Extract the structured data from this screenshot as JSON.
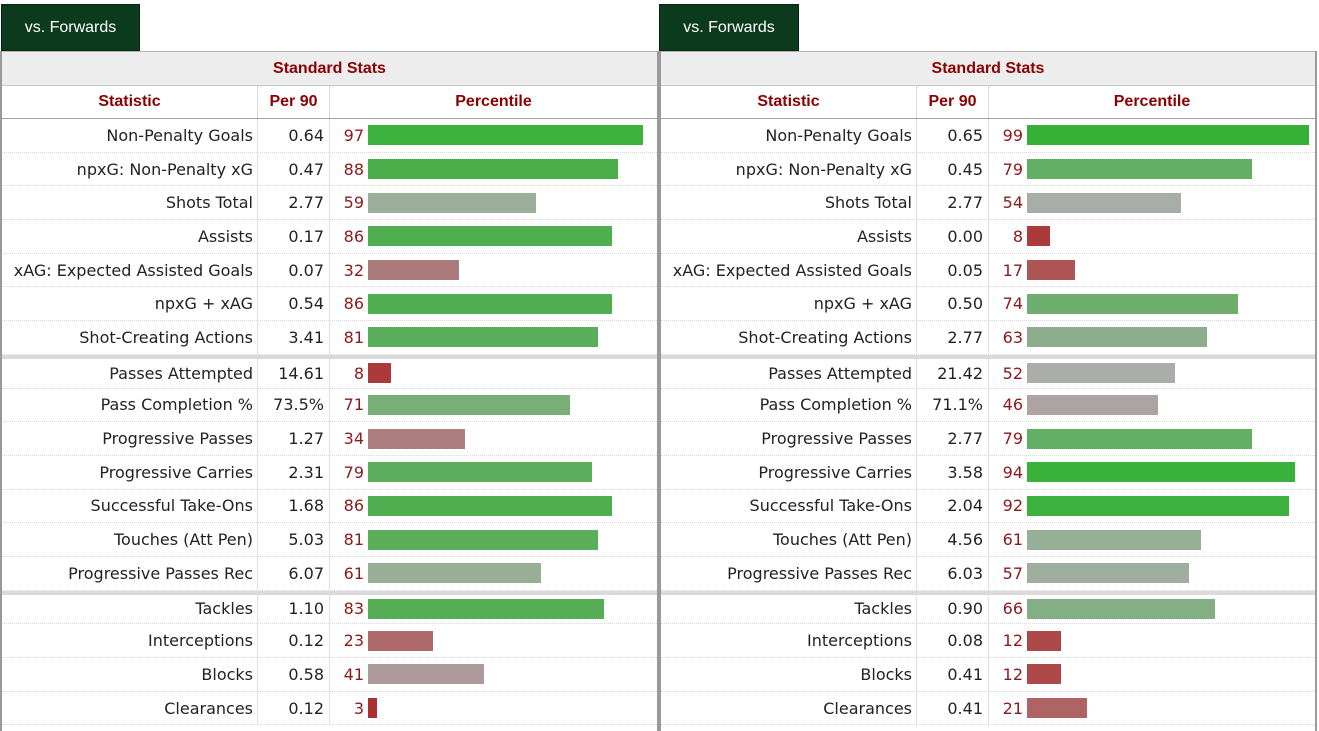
{
  "panels": [
    {
      "tab_label": "vs. Forwards",
      "group_title": "Standard Stats",
      "columns": {
        "statistic": "Statistic",
        "per90": "Per 90",
        "percentile": "Percentile"
      },
      "rows": [
        {
          "stat": "Non-Penalty Goals",
          "per90": "0.64",
          "pct": "97",
          "pct_value": 97,
          "color": "#3cb13c"
        },
        {
          "stat": "npxG: Non-Penalty xG",
          "per90": "0.47",
          "pct": "88",
          "pct_value": 88,
          "color": "#4aae4a"
        },
        {
          "stat": "Shots Total",
          "per90": "2.77",
          "pct": "59",
          "pct_value": 59,
          "color": "#9aae9a"
        },
        {
          "stat": "Assists",
          "per90": "0.17",
          "pct": "86",
          "pct_value": 86,
          "color": "#4fae4f"
        },
        {
          "stat": "xAG: Expected Assisted Goals",
          "per90": "0.07",
          "pct": "32",
          "pct_value": 32,
          "color": "#ab7b7b"
        },
        {
          "stat": "npxG + xAG",
          "per90": "0.54",
          "pct": "86",
          "pct_value": 86,
          "color": "#4fae4f"
        },
        {
          "stat": "Shot-Creating Actions",
          "per90": "3.41",
          "pct": "81",
          "pct_value": 81,
          "color": "#5aae5a",
          "group_end": true
        },
        {
          "stat": "Passes Attempted",
          "per90": "14.61",
          "pct": "8",
          "pct_value": 8,
          "color": "#ac3a3a",
          "sep": true
        },
        {
          "stat": "Pass Completion %",
          "per90": "73.5%",
          "pct": "71",
          "pct_value": 71,
          "color": "#79ae79"
        },
        {
          "stat": "Progressive Passes",
          "per90": "1.27",
          "pct": "34",
          "pct_value": 34,
          "color": "#ad8080"
        },
        {
          "stat": "Progressive Carries",
          "per90": "2.31",
          "pct": "79",
          "pct_value": 79,
          "color": "#5cae5c"
        },
        {
          "stat": "Successful Take-Ons",
          "per90": "1.68",
          "pct": "86",
          "pct_value": 86,
          "color": "#4fae4f"
        },
        {
          "stat": "Touches (Att Pen)",
          "per90": "5.03",
          "pct": "81",
          "pct_value": 81,
          "color": "#5aae5a"
        },
        {
          "stat": "Progressive Passes Rec",
          "per90": "6.07",
          "pct": "61",
          "pct_value": 61,
          "color": "#97ae97",
          "group_end": true
        },
        {
          "stat": "Tackles",
          "per90": "1.10",
          "pct": "83",
          "pct_value": 83,
          "color": "#55ae55",
          "sep": true
        },
        {
          "stat": "Interceptions",
          "per90": "0.12",
          "pct": "23",
          "pct_value": 23,
          "color": "#ae6a6a"
        },
        {
          "stat": "Blocks",
          "per90": "0.58",
          "pct": "41",
          "pct_value": 41,
          "color": "#ad9a9a"
        },
        {
          "stat": "Clearances",
          "per90": "0.12",
          "pct": "3",
          "pct_value": 3,
          "color": "#ad2f2f"
        }
      ]
    },
    {
      "tab_label": "vs. Forwards",
      "group_title": "Standard Stats",
      "columns": {
        "statistic": "Statistic",
        "per90": "Per 90",
        "percentile": "Percentile"
      },
      "rows": [
        {
          "stat": "Non-Penalty Goals",
          "per90": "0.65",
          "pct": "99",
          "pct_value": 99,
          "color": "#36b136"
        },
        {
          "stat": "npxG: Non-Penalty xG",
          "per90": "0.45",
          "pct": "79",
          "pct_value": 79,
          "color": "#62ae62"
        },
        {
          "stat": "Shots Total",
          "per90": "2.77",
          "pct": "54",
          "pct_value": 54,
          "color": "#a7ada7"
        },
        {
          "stat": "Assists",
          "per90": "0.00",
          "pct": "8",
          "pct_value": 8,
          "color": "#ac3a3a"
        },
        {
          "stat": "xAG: Expected Assisted Goals",
          "per90": "0.05",
          "pct": "17",
          "pct_value": 17,
          "color": "#ad5454"
        },
        {
          "stat": "npxG + xAG",
          "per90": "0.50",
          "pct": "74",
          "pct_value": 74,
          "color": "#6fae6f"
        },
        {
          "stat": "Shot-Creating Actions",
          "per90": "2.77",
          "pct": "63",
          "pct_value": 63,
          "color": "#8cae8c",
          "group_end": true
        },
        {
          "stat": "Passes Attempted",
          "per90": "21.42",
          "pct": "52",
          "pct_value": 52,
          "color": "#aaadaa",
          "sep": true
        },
        {
          "stat": "Pass Completion %",
          "per90": "71.1%",
          "pct": "46",
          "pct_value": 46,
          "color": "#ada3a3"
        },
        {
          "stat": "Progressive Passes",
          "per90": "2.77",
          "pct": "79",
          "pct_value": 79,
          "color": "#62ae62"
        },
        {
          "stat": "Progressive Carries",
          "per90": "3.58",
          "pct": "94",
          "pct_value": 94,
          "color": "#3ab13a"
        },
        {
          "stat": "Successful Take-Ons",
          "per90": "2.04",
          "pct": "92",
          "pct_value": 92,
          "color": "#3eb03e"
        },
        {
          "stat": "Touches (Att Pen)",
          "per90": "4.56",
          "pct": "61",
          "pct_value": 61,
          "color": "#97ae97"
        },
        {
          "stat": "Progressive Passes Rec",
          "per90": "6.03",
          "pct": "57",
          "pct_value": 57,
          "color": "#a0ae9f",
          "group_end": true
        },
        {
          "stat": "Tackles",
          "per90": "0.90",
          "pct": "66",
          "pct_value": 66,
          "color": "#84ae84",
          "sep": true
        },
        {
          "stat": "Interceptions",
          "per90": "0.08",
          "pct": "12",
          "pct_value": 12,
          "color": "#ac4848"
        },
        {
          "stat": "Blocks",
          "per90": "0.41",
          "pct": "12",
          "pct_value": 12,
          "color": "#ac4848"
        },
        {
          "stat": "Clearances",
          "per90": "0.41",
          "pct": "21",
          "pct_value": 21,
          "color": "#ae6464"
        }
      ]
    }
  ]
}
